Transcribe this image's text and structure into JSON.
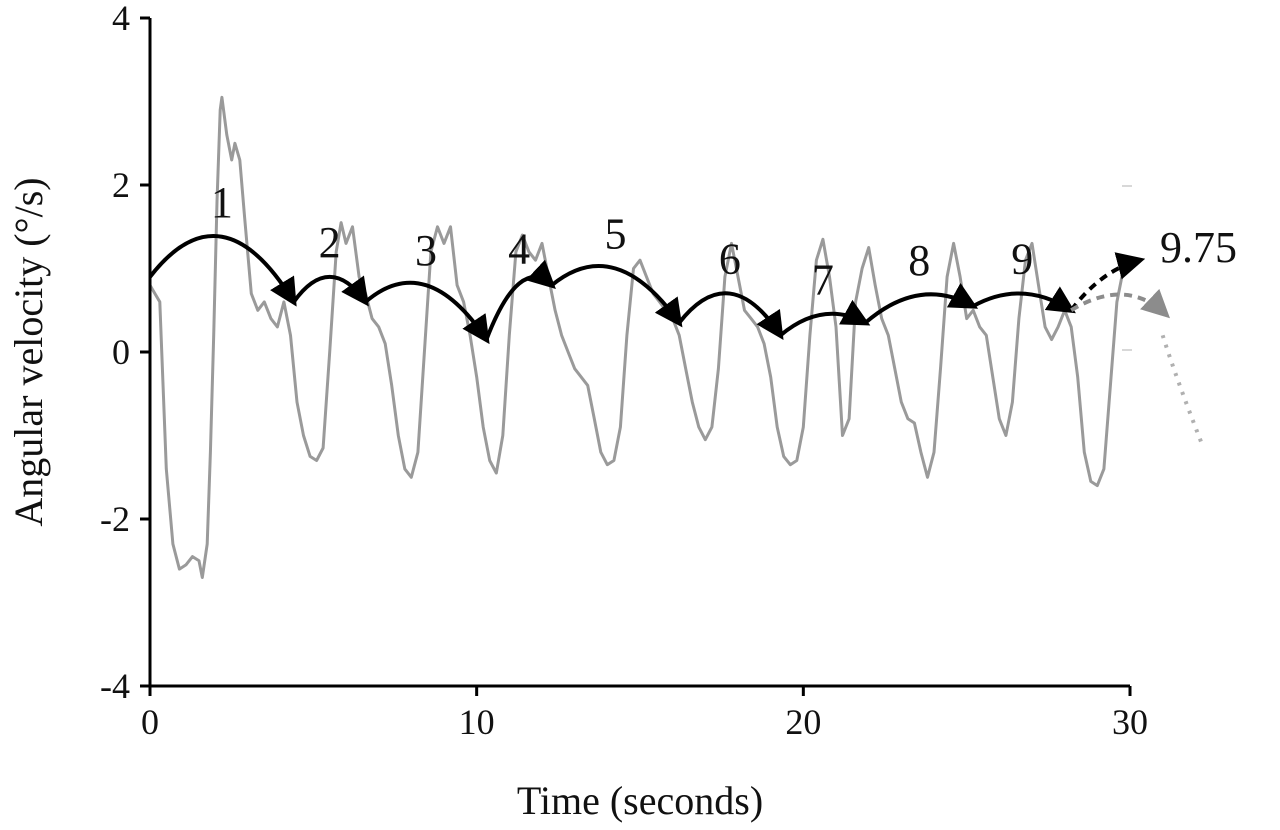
{
  "chart_data": {
    "type": "line",
    "xlabel": "Time (seconds)",
    "ylabel": "Angular velocity (°/s)",
    "xlim": [
      0,
      30
    ],
    "ylim": [
      -4,
      4
    ],
    "x_ticks": [
      0,
      10,
      20,
      30
    ],
    "x_tick_labels": [
      "0",
      "10",
      "20",
      "30"
    ],
    "y_ticks": [
      -4,
      -2,
      0,
      2,
      4
    ],
    "y_tick_labels": [
      "-4",
      "-2",
      "0",
      "2",
      "4"
    ],
    "grid": false,
    "series": [
      {
        "points": [
          [
            0.0,
            0.8
          ],
          [
            0.3,
            0.6
          ],
          [
            0.5,
            -1.4
          ],
          [
            0.7,
            -2.3
          ],
          [
            0.9,
            -2.6
          ],
          [
            1.1,
            -2.55
          ],
          [
            1.3,
            -2.45
          ],
          [
            1.5,
            -2.5
          ],
          [
            1.6,
            -2.7
          ],
          [
            1.75,
            -2.3
          ],
          [
            1.85,
            -1.2
          ],
          [
            1.95,
            0.2
          ],
          [
            2.05,
            1.8
          ],
          [
            2.15,
            2.9
          ],
          [
            2.2,
            3.05
          ],
          [
            2.35,
            2.6
          ],
          [
            2.5,
            2.3
          ],
          [
            2.6,
            2.5
          ],
          [
            2.75,
            2.3
          ],
          [
            2.9,
            1.6
          ],
          [
            3.1,
            0.7
          ],
          [
            3.3,
            0.5
          ],
          [
            3.5,
            0.6
          ],
          [
            3.7,
            0.4
          ],
          [
            3.9,
            0.3
          ],
          [
            4.1,
            0.6
          ],
          [
            4.3,
            0.2
          ],
          [
            4.5,
            -0.6
          ],
          [
            4.7,
            -1.0
          ],
          [
            4.9,
            -1.25
          ],
          [
            5.1,
            -1.3
          ],
          [
            5.3,
            -1.15
          ],
          [
            5.5,
            0.0
          ],
          [
            5.7,
            1.2
          ],
          [
            5.85,
            1.55
          ],
          [
            6.0,
            1.3
          ],
          [
            6.2,
            1.5
          ],
          [
            6.4,
            0.9
          ],
          [
            6.6,
            0.7
          ],
          [
            6.8,
            0.4
          ],
          [
            7.0,
            0.3
          ],
          [
            7.2,
            0.1
          ],
          [
            7.4,
            -0.4
          ],
          [
            7.6,
            -1.0
          ],
          [
            7.8,
            -1.4
          ],
          [
            8.0,
            -1.5
          ],
          [
            8.2,
            -1.2
          ],
          [
            8.4,
            0.0
          ],
          [
            8.6,
            1.2
          ],
          [
            8.8,
            1.5
          ],
          [
            9.0,
            1.3
          ],
          [
            9.2,
            1.5
          ],
          [
            9.4,
            0.8
          ],
          [
            9.6,
            0.6
          ],
          [
            9.8,
            0.2
          ],
          [
            10.0,
            -0.3
          ],
          [
            10.2,
            -0.9
          ],
          [
            10.4,
            -1.3
          ],
          [
            10.6,
            -1.45
          ],
          [
            10.8,
            -1.0
          ],
          [
            11.0,
            0.2
          ],
          [
            11.2,
            1.2
          ],
          [
            11.4,
            1.4
          ],
          [
            11.6,
            1.2
          ],
          [
            11.8,
            1.1
          ],
          [
            12.0,
            1.3
          ],
          [
            12.2,
            0.9
          ],
          [
            12.4,
            0.5
          ],
          [
            12.6,
            0.2
          ],
          [
            12.8,
            0.0
          ],
          [
            13.0,
            -0.2
          ],
          [
            13.2,
            -0.3
          ],
          [
            13.4,
            -0.4
          ],
          [
            13.6,
            -0.8
          ],
          [
            13.8,
            -1.2
          ],
          [
            14.0,
            -1.35
          ],
          [
            14.2,
            -1.3
          ],
          [
            14.4,
            -0.9
          ],
          [
            14.6,
            0.2
          ],
          [
            14.8,
            1.0
          ],
          [
            15.0,
            1.1
          ],
          [
            15.2,
            0.9
          ],
          [
            15.4,
            0.7
          ],
          [
            15.6,
            0.6
          ],
          [
            15.8,
            0.5
          ],
          [
            16.0,
            0.4
          ],
          [
            16.2,
            0.2
          ],
          [
            16.4,
            -0.2
          ],
          [
            16.6,
            -0.6
          ],
          [
            16.8,
            -0.9
          ],
          [
            17.0,
            -1.05
          ],
          [
            17.2,
            -0.9
          ],
          [
            17.4,
            -0.2
          ],
          [
            17.6,
            0.9
          ],
          [
            17.8,
            1.3
          ],
          [
            18.0,
            0.9
          ],
          [
            18.2,
            0.5
          ],
          [
            18.4,
            0.4
          ],
          [
            18.6,
            0.3
          ],
          [
            18.8,
            0.1
          ],
          [
            19.0,
            -0.3
          ],
          [
            19.2,
            -0.9
          ],
          [
            19.4,
            -1.25
          ],
          [
            19.6,
            -1.35
          ],
          [
            19.8,
            -1.3
          ],
          [
            20.0,
            -0.9
          ],
          [
            20.2,
            0.2
          ],
          [
            20.4,
            1.1
          ],
          [
            20.6,
            1.35
          ],
          [
            20.8,
            0.9
          ],
          [
            21.0,
            0.3
          ],
          [
            21.2,
            -1.0
          ],
          [
            21.4,
            -0.8
          ],
          [
            21.6,
            0.6
          ],
          [
            21.8,
            1.0
          ],
          [
            22.0,
            1.25
          ],
          [
            22.2,
            0.8
          ],
          [
            22.4,
            0.4
          ],
          [
            22.6,
            0.2
          ],
          [
            22.8,
            -0.2
          ],
          [
            23.0,
            -0.6
          ],
          [
            23.2,
            -0.8
          ],
          [
            23.4,
            -0.85
          ],
          [
            23.6,
            -1.2
          ],
          [
            23.8,
            -1.5
          ],
          [
            24.0,
            -1.2
          ],
          [
            24.2,
            -0.2
          ],
          [
            24.4,
            0.9
          ],
          [
            24.6,
            1.3
          ],
          [
            24.8,
            0.9
          ],
          [
            25.0,
            0.4
          ],
          [
            25.2,
            0.5
          ],
          [
            25.4,
            0.3
          ],
          [
            25.6,
            0.2
          ],
          [
            25.8,
            -0.3
          ],
          [
            26.0,
            -0.8
          ],
          [
            26.2,
            -1.0
          ],
          [
            26.4,
            -0.6
          ],
          [
            26.6,
            0.4
          ],
          [
            26.8,
            1.1
          ],
          [
            27.0,
            1.3
          ],
          [
            27.2,
            0.8
          ],
          [
            27.4,
            0.3
          ],
          [
            27.6,
            0.15
          ],
          [
            27.8,
            0.3
          ],
          [
            28.0,
            0.5
          ],
          [
            28.2,
            0.3
          ],
          [
            28.4,
            -0.3
          ],
          [
            28.6,
            -1.2
          ],
          [
            28.8,
            -1.55
          ],
          [
            29.0,
            -1.6
          ],
          [
            29.2,
            -1.4
          ],
          [
            29.4,
            -0.4
          ],
          [
            29.6,
            0.6
          ],
          [
            29.8,
            1.0
          ],
          [
            29.95,
            1.1
          ]
        ]
      }
    ],
    "cycle_arcs": [
      {
        "label": "1",
        "x0": 0.0,
        "y0": 0.9,
        "x1": 4.4,
        "y1": 0.6,
        "peak": 1.38,
        "dir": "end"
      },
      {
        "label": "2",
        "x0": 4.4,
        "y0": 0.6,
        "x1": 6.6,
        "y1": 0.6,
        "peak": 0.9,
        "dir": "end"
      },
      {
        "label": "3",
        "x0": 6.6,
        "y0": 0.6,
        "x1": 10.3,
        "y1": 0.15,
        "peak": 0.8,
        "dir": "end"
      },
      {
        "label": "4",
        "x0": 10.3,
        "y0": 0.15,
        "x1": 12.3,
        "y1": 0.8,
        "peak": 0.82,
        "dir": "end"
      },
      {
        "label": "5",
        "x0": 12.3,
        "y0": 0.8,
        "x1": 16.2,
        "y1": 0.35,
        "peak": 1.0,
        "dir": "end"
      },
      {
        "label": "6",
        "x0": 16.2,
        "y0": 0.35,
        "x1": 19.3,
        "y1": 0.2,
        "peak": 0.7,
        "dir": "end"
      },
      {
        "label": "7",
        "x0": 19.3,
        "y0": 0.2,
        "x1": 21.9,
        "y1": 0.35,
        "peak": 0.45,
        "dir": "end"
      },
      {
        "label": "8",
        "x0": 21.9,
        "y0": 0.35,
        "x1": 25.2,
        "y1": 0.55,
        "peak": 0.68,
        "dir": "end"
      },
      {
        "label": "9",
        "x0": 25.2,
        "y0": 0.55,
        "x1": 28.2,
        "y1": 0.5,
        "peak": 0.7,
        "dir": "end"
      }
    ],
    "annotations": [
      {
        "text": "9.75"
      }
    ],
    "colors": {
      "signal": "#9a9a9a",
      "arc": "#000000",
      "projection": "#8c8c8c",
      "axis": "#000000"
    }
  }
}
